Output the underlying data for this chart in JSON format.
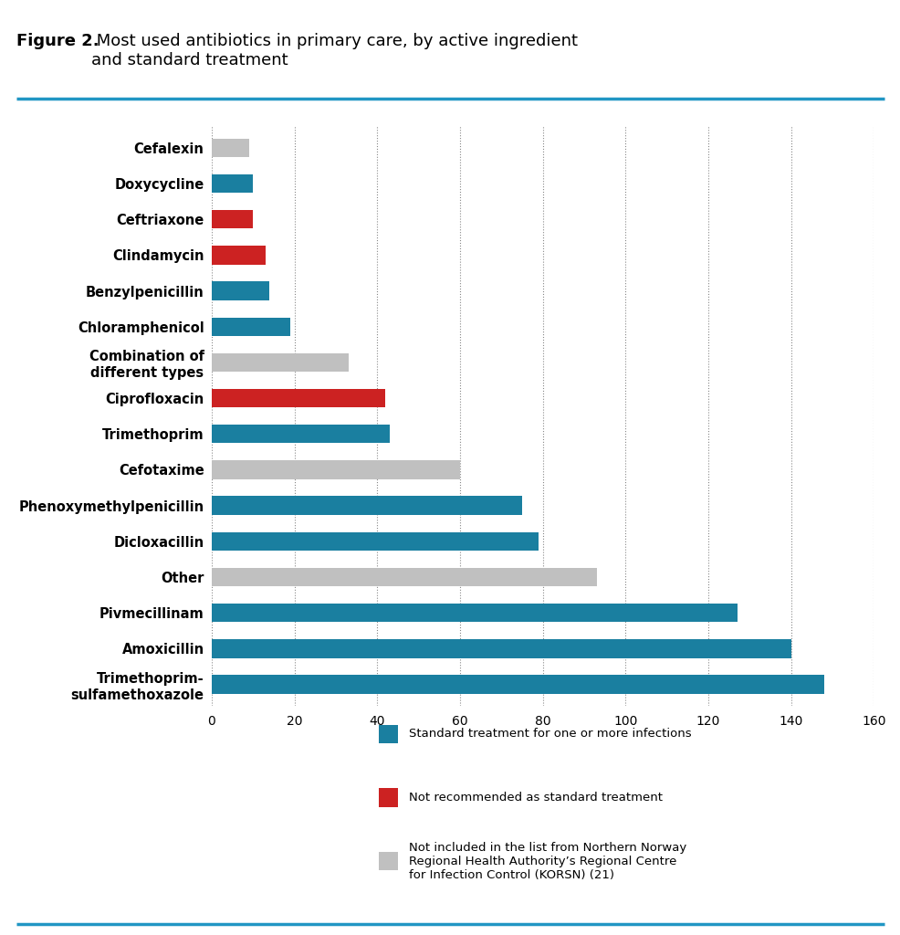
{
  "categories": [
    "Trimethoprim-\nsulfamethoxazole",
    "Amoxicillin",
    "Pivmecillinam",
    "Other",
    "Dicloxacillin",
    "Phenoxymethylpenicillin",
    "Cefotaxime",
    "Trimethoprim",
    "Ciprofloxacin",
    "Combination of\ndifferent types",
    "Chloramphenicol",
    "Benzylpenicillin",
    "Clindamycin",
    "Ceftriaxone",
    "Doxycycline",
    "Cefalexin"
  ],
  "values": [
    148,
    140,
    127,
    93,
    79,
    75,
    60,
    43,
    42,
    33,
    19,
    14,
    13,
    10,
    10,
    9
  ],
  "colors": [
    "#1a7fa0",
    "#1a7fa0",
    "#1a7fa0",
    "#c0c0c0",
    "#1a7fa0",
    "#1a7fa0",
    "#c0c0c0",
    "#1a7fa0",
    "#cc2222",
    "#c0c0c0",
    "#1a7fa0",
    "#1a7fa0",
    "#cc2222",
    "#cc2222",
    "#1a7fa0",
    "#c0c0c0"
  ],
  "xlim": [
    0,
    160
  ],
  "xticks": [
    0,
    20,
    40,
    60,
    80,
    100,
    120,
    140,
    160
  ],
  "title_bold": "Figure 2.",
  "title_normal": " Most used antibiotics in primary care, by active ingredient\nand standard treatment",
  "legend_items": [
    {
      "label": "Standard treatment for one or more infections",
      "color": "#1a7fa0"
    },
    {
      "label": "Not recommended as standard treatment",
      "color": "#cc2222"
    },
    {
      "label": "Not included in the list from Northern Norway\nRegional Health Authority’s Regional Centre\nfor Infection Control (KORSN) (21)",
      "color": "#c0c0c0"
    }
  ],
  "background_color": "#ffffff",
  "accent_color": "#2196c4",
  "grid_linestyle": ":",
  "grid_color": "#888888",
  "grid_linewidth": 0.8
}
